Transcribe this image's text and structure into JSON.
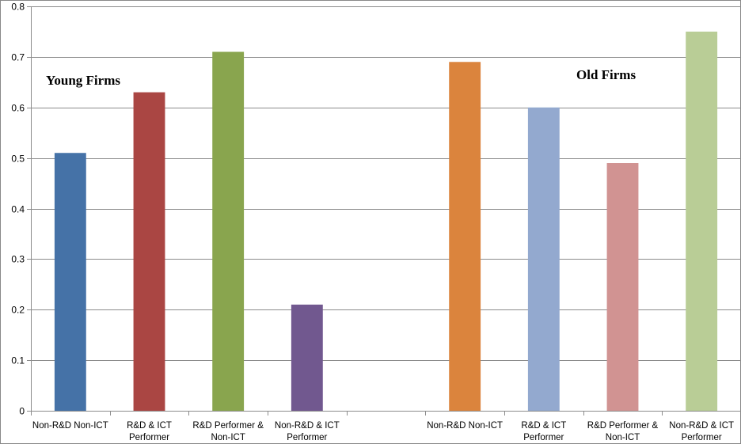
{
  "chart_data": {
    "type": "bar",
    "title": "",
    "xlabel": "",
    "ylabel": "",
    "ylim": [
      0,
      0.8
    ],
    "yticks": [
      "0",
      "0.1",
      "0.2",
      "0.3",
      "0.4",
      "0.5",
      "0.6",
      "0.7",
      "0.8"
    ],
    "grid": true,
    "legend": "none",
    "groups": [
      {
        "label": "Young Firms",
        "bars": [
          {
            "category": [
              "Non-R&D Non-ICT"
            ],
            "value": 0.51,
            "color": "#4572A7"
          },
          {
            "category": [
              "R&D & ICT",
              "Performer"
            ],
            "value": 0.63,
            "color": "#AA4643"
          },
          {
            "category": [
              "R&D Performer &",
              "Non-ICT"
            ],
            "value": 0.71,
            "color": "#89A54E"
          },
          {
            "category": [
              "Non-R&D  & ICT",
              "Performer"
            ],
            "value": 0.21,
            "color": "#71588F"
          }
        ]
      },
      {
        "label": "Old Firms",
        "bars": [
          {
            "category": [
              "Non-R&D Non-ICT"
            ],
            "value": 0.69,
            "color": "#DB843D"
          },
          {
            "category": [
              "R&D & ICT",
              "Performer"
            ],
            "value": 0.6,
            "color": "#93A9CF"
          },
          {
            "category": [
              "R&D Performer &",
              "Non-ICT"
            ],
            "value": 0.49,
            "color": "#D19392"
          },
          {
            "category": [
              "Non-R&D  & ICT",
              "Performer"
            ],
            "value": 0.75,
            "color": "#B9CD96"
          }
        ]
      }
    ]
  }
}
